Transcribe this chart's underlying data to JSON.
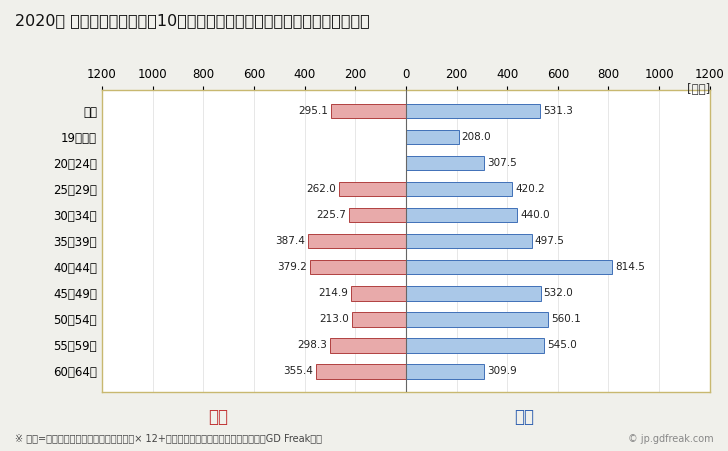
{
  "title": "2020年 民間企業（従業者数10人以上）フルタイム労働者の男女別平均年収",
  "unit_label": "[万円]",
  "categories": [
    "全体",
    "19歳以下",
    "20～24歳",
    "25～29歳",
    "30～34歳",
    "35～39歳",
    "40～44歳",
    "45～49歳",
    "50～54歳",
    "55～59歳",
    "60～64歳"
  ],
  "female_values": [
    295.1,
    0,
    0,
    262.0,
    225.7,
    387.4,
    379.2,
    214.9,
    213.0,
    298.3,
    355.4
  ],
  "male_values": [
    531.3,
    208.0,
    307.5,
    420.2,
    440.0,
    497.5,
    814.5,
    532.0,
    560.1,
    545.0,
    309.9
  ],
  "female_color": "#e8aaaa",
  "female_edge_color": "#b04040",
  "male_color": "#aac8e8",
  "male_edge_color": "#4070b8",
  "xlim": [
    -1200,
    1200
  ],
  "xticks": [
    -1200,
    -1000,
    -800,
    -600,
    -400,
    -200,
    0,
    200,
    400,
    600,
    800,
    1000,
    1200
  ],
  "xticklabels": [
    "1200",
    "1000",
    "800",
    "600",
    "400",
    "200",
    "0",
    "200",
    "400",
    "600",
    "800",
    "1000",
    "1200"
  ],
  "female_label": "女性",
  "male_label": "男性",
  "female_label_color": "#c03030",
  "male_label_color": "#3060b0",
  "footnote": "※ 年収=「きまって支給する現金給与額」× 12+「年間賞与その他特別給与額」としてGD Freak推計",
  "watermark": "© jp.gdfreak.com",
  "bg_color": "#f0f0eb",
  "plot_bg_color": "#ffffff",
  "bar_height": 0.55,
  "title_fontsize": 11.5,
  "tick_fontsize": 8.5,
  "value_fontsize": 7.5,
  "footnote_fontsize": 7,
  "border_color": "#c8b870"
}
